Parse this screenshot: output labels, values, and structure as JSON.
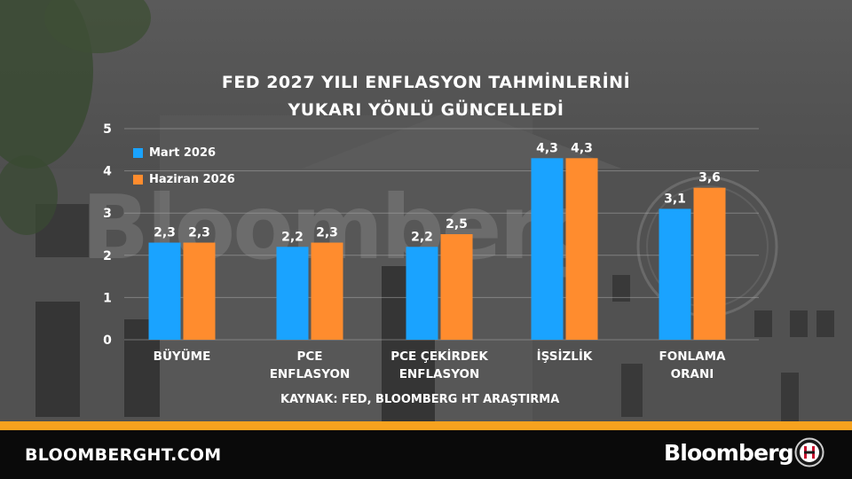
{
  "title_line1": "FED 2027 YILI ENFLASYON TAHMİNLERİNİ",
  "title_line2": "YUKARI YÖNLÜ GÜNCELLEDİ",
  "watermark": "Bloomberg",
  "source": "KAYNAK: FED, BLOOMBERG HT ARAŞTIRMA",
  "footer": {
    "site": "BLOOMBERGHT.COM",
    "brand": "Bloomberg"
  },
  "colors": {
    "series1": "#1aa3ff",
    "series2": "#ff8c2e",
    "stripe": "#f7a21e",
    "footer_bg": "#0a0a0a",
    "text": "#ffffff"
  },
  "icons": {
    "footer_logo": "bloomberg-ht-logo-icon",
    "watermark_logo": "bloomberg-ht-watermark-icon"
  },
  "chart_data": {
    "type": "bar",
    "title": "FED 2027 YILI ENFLASYON TAHMİNLERİNİ YUKARI YÖNLÜ GÜNCELLEDİ",
    "categories": [
      "BÜYÜME",
      "PCE ENFLASYON",
      "PCE ÇEKİRDEK ENFLASYON",
      "İŞSİZLİK",
      "FONLAMA ORANI"
    ],
    "category_lines": [
      [
        "BÜYÜME"
      ],
      [
        "PCE",
        "ENFLASYON"
      ],
      [
        "PCE ÇEKİRDEK",
        "ENFLASYON"
      ],
      [
        "İŞSİZLİK"
      ],
      [
        "FONLAMA",
        "ORANI"
      ]
    ],
    "series": [
      {
        "name": "Mart 2026",
        "values": [
          2.3,
          2.2,
          2.2,
          4.3,
          3.1
        ],
        "labels": [
          "2,3",
          "2,2",
          "2,2",
          "4,3",
          "3,1"
        ]
      },
      {
        "name": "Haziran 2026",
        "values": [
          2.3,
          2.3,
          2.5,
          4.3,
          3.6
        ],
        "labels": [
          "2,3",
          "2,3",
          "2,5",
          "4,3",
          "3,6"
        ]
      }
    ],
    "y_ticks": [
      "0",
      "1",
      "2",
      "3",
      "4",
      "5"
    ],
    "ylim": [
      0,
      5
    ],
    "grid": true,
    "legend_position": "top-left",
    "xlabel": "",
    "ylabel": ""
  }
}
